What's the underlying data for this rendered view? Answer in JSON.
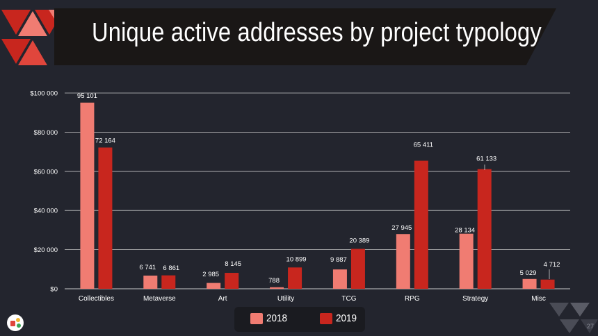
{
  "title": "Unique active addresses by project typology",
  "page_number": "27",
  "colors": {
    "background": "#23252e",
    "series_2018": "#f07c72",
    "series_2019": "#c8261e",
    "grid": "#c9c9c9",
    "text": "#ffffff"
  },
  "legend": {
    "items": [
      {
        "label": "2018",
        "color": "#f07c72"
      },
      {
        "label": "2019",
        "color": "#c8261e"
      }
    ]
  },
  "chart_data": {
    "type": "bar",
    "categories": [
      "Collectibles",
      "Metaverse",
      "Art",
      "Utility",
      "TCG",
      "RPG",
      "Strategy",
      "Misc"
    ],
    "series": [
      {
        "name": "2018",
        "values": [
          95101,
          6741,
          2985,
          788,
          9887,
          27945,
          28134,
          5029
        ],
        "labels": [
          "95 101",
          "6 741",
          "2 985",
          "788",
          "9 887",
          "27 945",
          "28 134",
          "5 029"
        ]
      },
      {
        "name": "2019",
        "values": [
          72164,
          6861,
          8145,
          10899,
          20389,
          65411,
          61133,
          4712
        ],
        "labels": [
          "72 164",
          "6 861",
          "8 145",
          "10 899",
          "20 389",
          "65 411",
          "61 133",
          "4 712"
        ]
      }
    ],
    "y_ticks": [
      0,
      20000,
      40000,
      60000,
      80000,
      100000
    ],
    "y_tick_labels": [
      "$0",
      "$20 000",
      "$40 000",
      "$60 000",
      "$80 000",
      "$100 000"
    ],
    "ylim": [
      0,
      100000
    ],
    "grid": true,
    "legend_position": "bottom-center"
  }
}
